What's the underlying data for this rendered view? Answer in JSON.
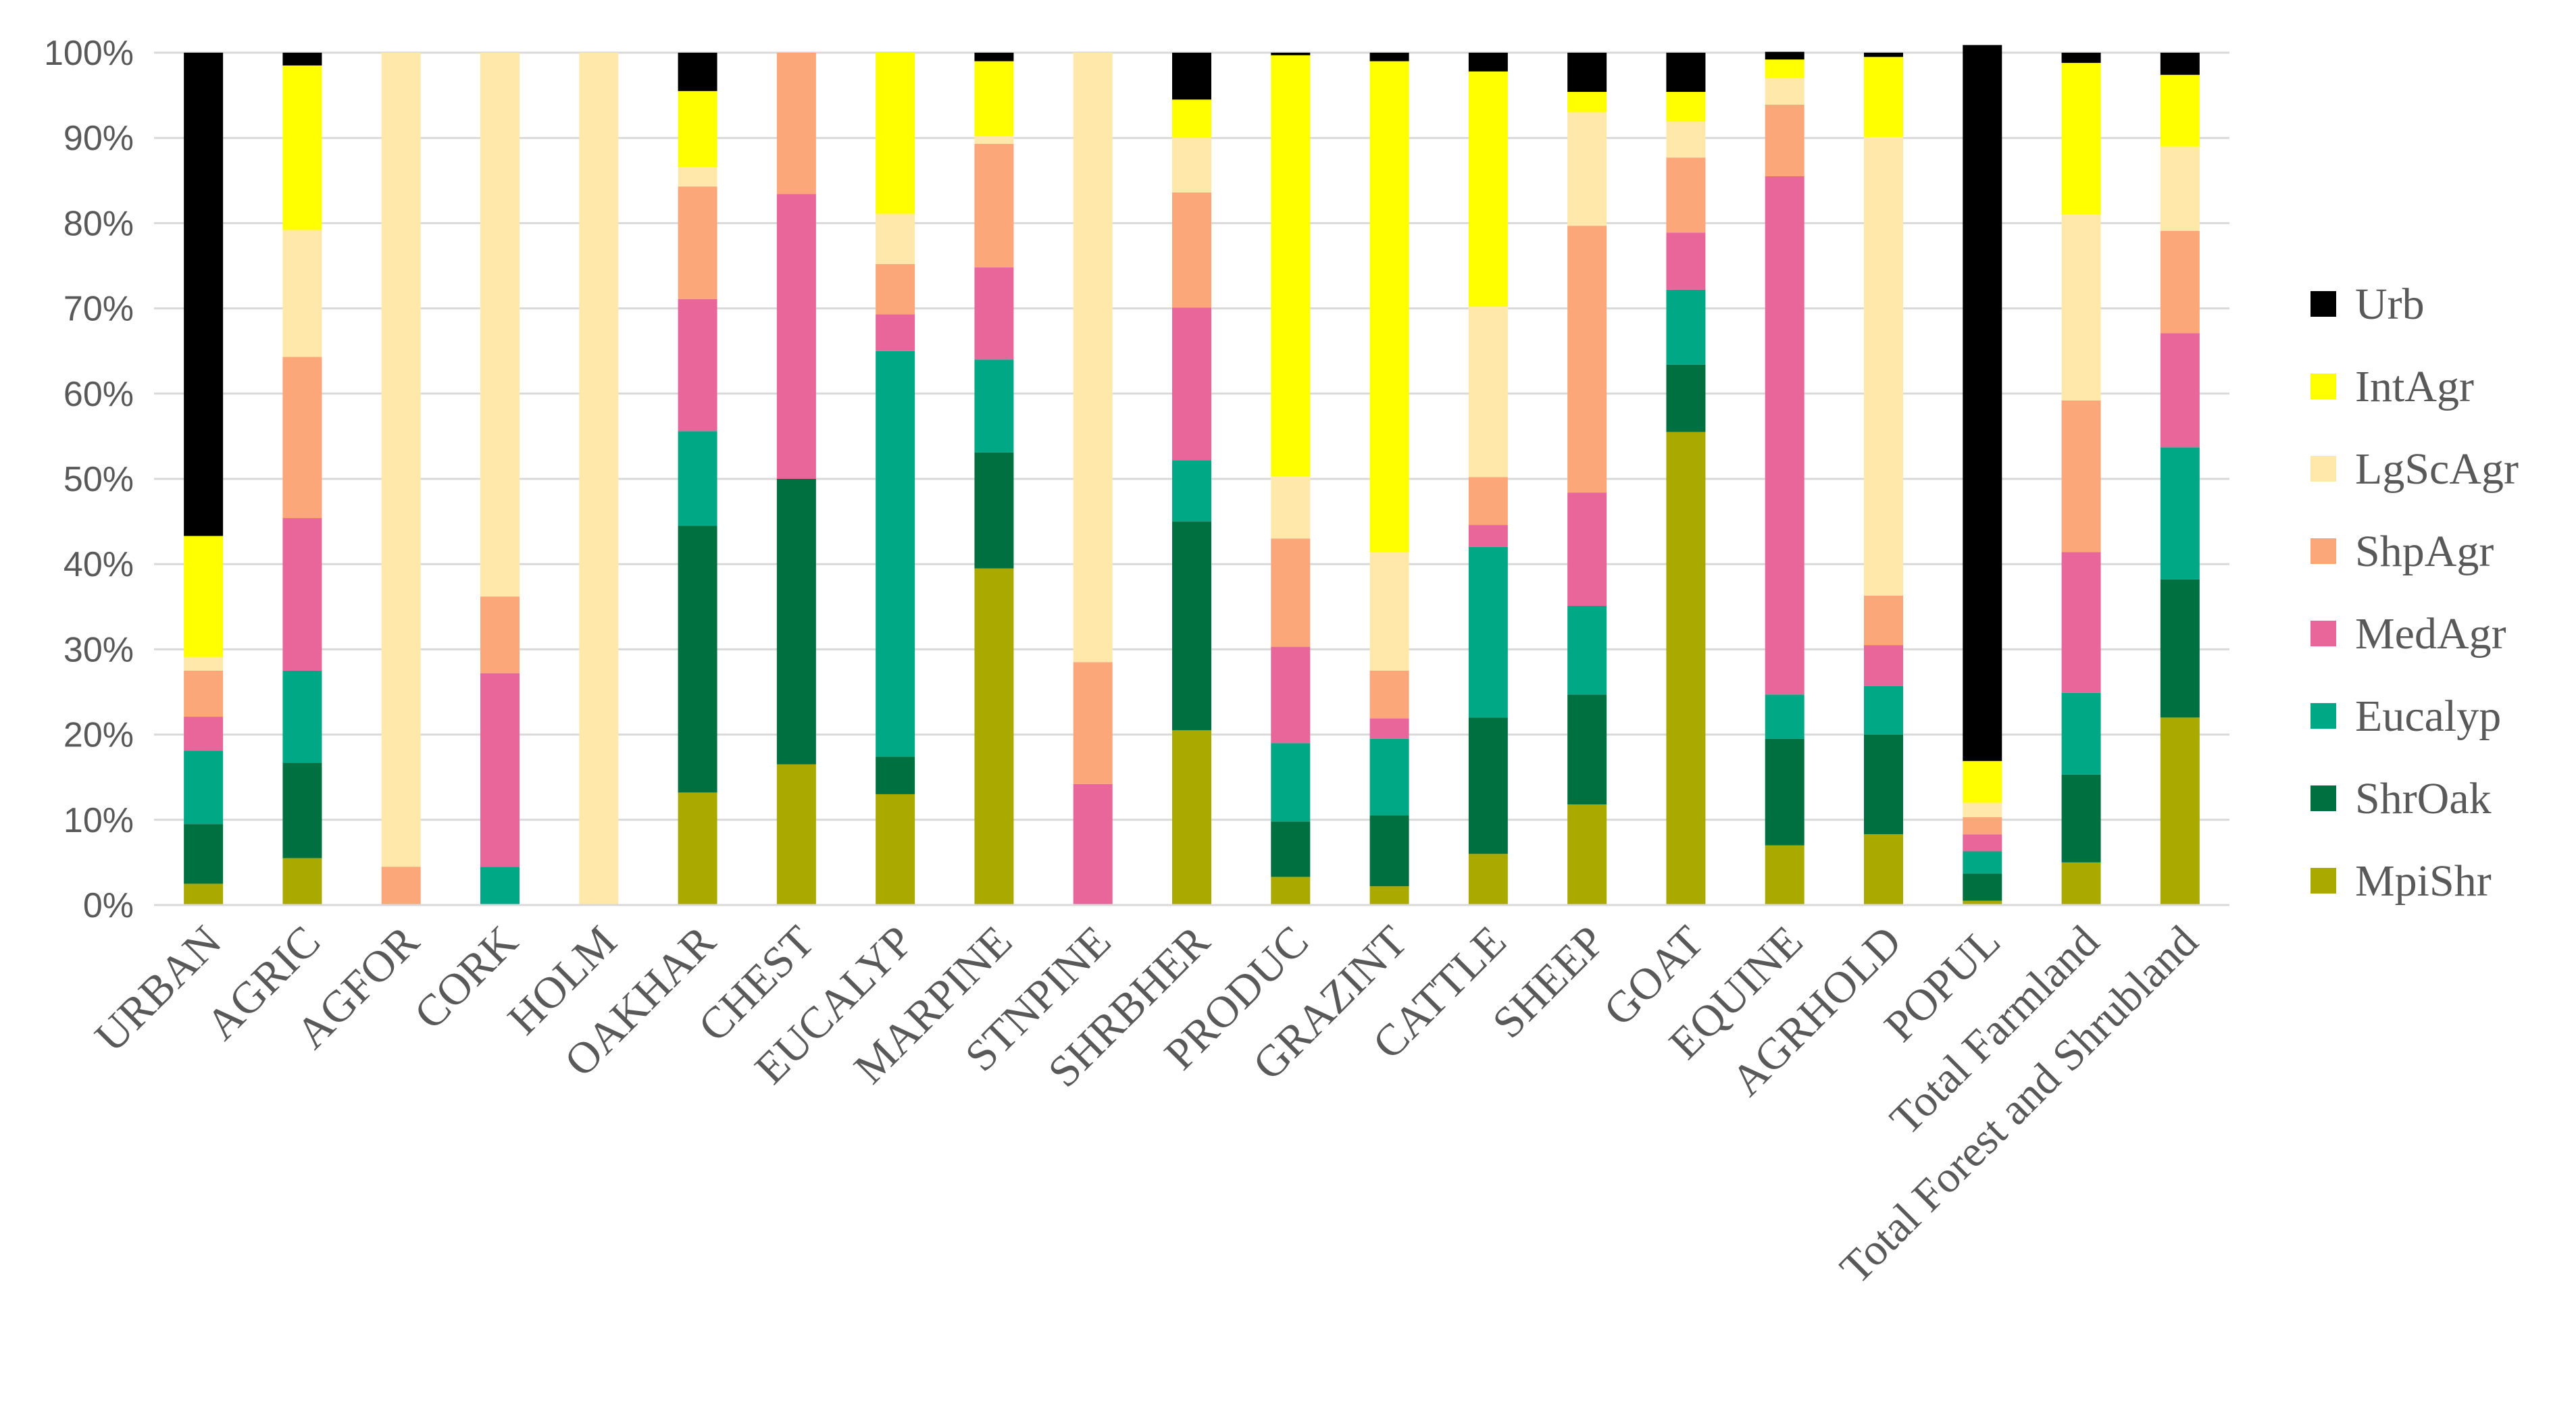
{
  "chart_data": {
    "type": "bar",
    "stacked": true,
    "percent_stacked": true,
    "title": "",
    "xlabel": "",
    "ylabel": "",
    "ylim": [
      0,
      100
    ],
    "yticks": [
      "0%",
      "10%",
      "20%",
      "30%",
      "40%",
      "50%",
      "60%",
      "70%",
      "80%",
      "90%",
      "100%"
    ],
    "legend_position": "right",
    "categories": [
      "URBAN",
      "AGRIC",
      "AGFOR",
      "CORK",
      "HOLM",
      "OAKHAR",
      "CHEST",
      "EUCALYP",
      "MARPINE",
      "STNPINE",
      "SHRBHER",
      "PRODUC",
      "GRAZINT",
      "CATTLE",
      "SHEEP",
      "GOAT",
      "EQUINE",
      "AGRHOLD",
      "POPUL",
      "Total Farmland",
      "Total Forest and Shrubland"
    ],
    "series": [
      {
        "name": "MpiShr",
        "color": "#a9a900",
        "values": [
          2.5,
          5.5,
          0,
          0,
          0,
          13.2,
          16.5,
          13,
          39.5,
          0,
          20.5,
          3.3,
          2.2,
          6,
          11.8,
          55.5,
          7,
          8.3,
          0.5,
          5,
          22
        ]
      },
      {
        "name": "ShrOak",
        "color": "#007040",
        "values": [
          7,
          11.2,
          0,
          0,
          0,
          31.3,
          33.5,
          4.4,
          13.6,
          0,
          24.5,
          6.5,
          8.3,
          16,
          12.9,
          7.9,
          12.5,
          11.7,
          3.2,
          10.3,
          16.2
        ]
      },
      {
        "name": "Eucalyp",
        "color": "#00a885",
        "values": [
          8.6,
          10.8,
          0,
          4.5,
          0,
          11.1,
          0,
          47.6,
          10.9,
          0,
          7.2,
          9.2,
          9,
          20,
          10.4,
          8.8,
          5.2,
          5.7,
          2.6,
          9.6,
          15.5
        ]
      },
      {
        "name": "MedAgr",
        "color": "#e8669a",
        "values": [
          4,
          17.9,
          0,
          22.7,
          0,
          15.5,
          33.4,
          4.3,
          10.8,
          14.2,
          17.9,
          11.3,
          2.4,
          2.6,
          13.3,
          6.7,
          60.8,
          4.8,
          2,
          16.5,
          13.4
        ]
      },
      {
        "name": "ShpAgr",
        "color": "#fca77a",
        "values": [
          5.4,
          18.9,
          4.5,
          9,
          0,
          13.2,
          16.6,
          5.9,
          14.5,
          14.3,
          13.5,
          12.7,
          5.6,
          5.6,
          31.3,
          8.8,
          8.4,
          5.8,
          2,
          17.8,
          12
        ]
      },
      {
        "name": "LgScAgr",
        "color": "#ffe8aa",
        "values": [
          1.6,
          14.9,
          95.5,
          63.8,
          100,
          2.3,
          0,
          5.9,
          0.9,
          71.5,
          6.4,
          7.3,
          13.9,
          20,
          13.3,
          4.2,
          3.1,
          53.8,
          1.7,
          21.8,
          9.9
        ]
      },
      {
        "name": "IntAgr",
        "color": "#ffff00",
        "values": [
          14.2,
          19.3,
          0,
          0,
          0,
          8.9,
          0,
          18.9,
          8.8,
          0,
          4.5,
          49.4,
          57.6,
          27.6,
          2.4,
          3.5,
          2.2,
          9.4,
          4.9,
          17.8,
          8.4
        ]
      },
      {
        "name": "Urb",
        "color": "#000000",
        "values": [
          56.7,
          1.5,
          0,
          0,
          0,
          4.5,
          0,
          0,
          1,
          0,
          5.5,
          0.3,
          1,
          2.2,
          4.6,
          4.6,
          0.9,
          0.5,
          84,
          1.2,
          2.6
        ]
      }
    ]
  }
}
